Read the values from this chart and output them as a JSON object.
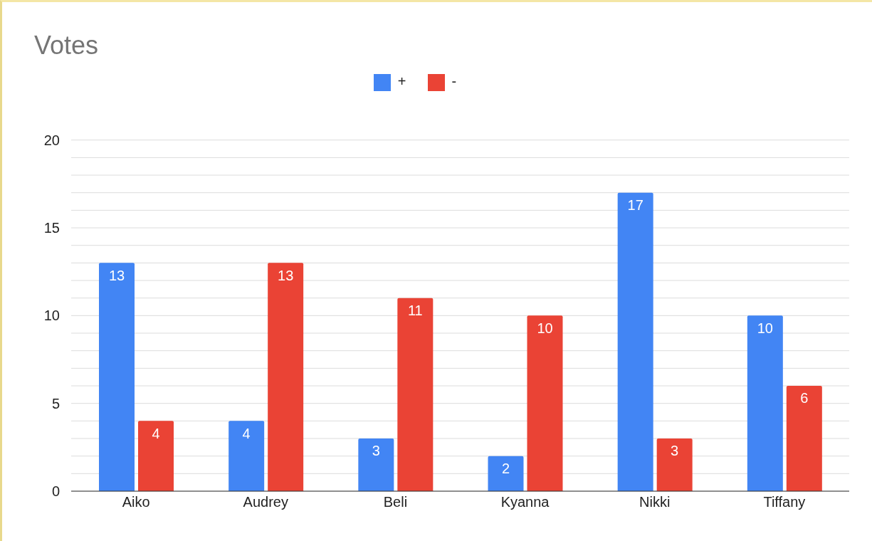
{
  "chart_data": {
    "type": "bar",
    "title": "Votes",
    "categories": [
      "Aiko",
      "Audrey",
      "Beli",
      "Kyanna",
      "Nikki",
      "Tiffany"
    ],
    "series": [
      {
        "name": "+",
        "color": "#4285f4",
        "values": [
          13,
          4,
          3,
          2,
          17,
          10
        ]
      },
      {
        "name": "-",
        "color": "#ea4335",
        "values": [
          4,
          13,
          11,
          10,
          3,
          6
        ]
      }
    ],
    "ylim": [
      0,
      20
    ],
    "yticks": [
      0,
      {
        "value": 1,
        "label": null
      },
      {
        "value": 2,
        "label": null
      },
      {
        "value": 3,
        "label": null
      },
      {
        "value": 4,
        "label": null
      },
      5,
      {
        "value": 6,
        "label": null
      },
      {
        "value": 7,
        "label": null
      },
      {
        "value": 8,
        "label": null
      },
      {
        "value": 9,
        "label": null
      },
      10,
      {
        "value": 11,
        "label": null
      },
      {
        "value": 12,
        "label": null
      },
      {
        "value": 13,
        "label": null
      },
      {
        "value": 14,
        "label": null
      },
      15,
      {
        "value": 16,
        "label": null
      },
      {
        "value": 17,
        "label": null
      },
      {
        "value": 18,
        "label": null
      },
      {
        "value": 19,
        "label": null
      },
      20
    ],
    "grid": "y",
    "legend": "top",
    "data_labels": true
  }
}
